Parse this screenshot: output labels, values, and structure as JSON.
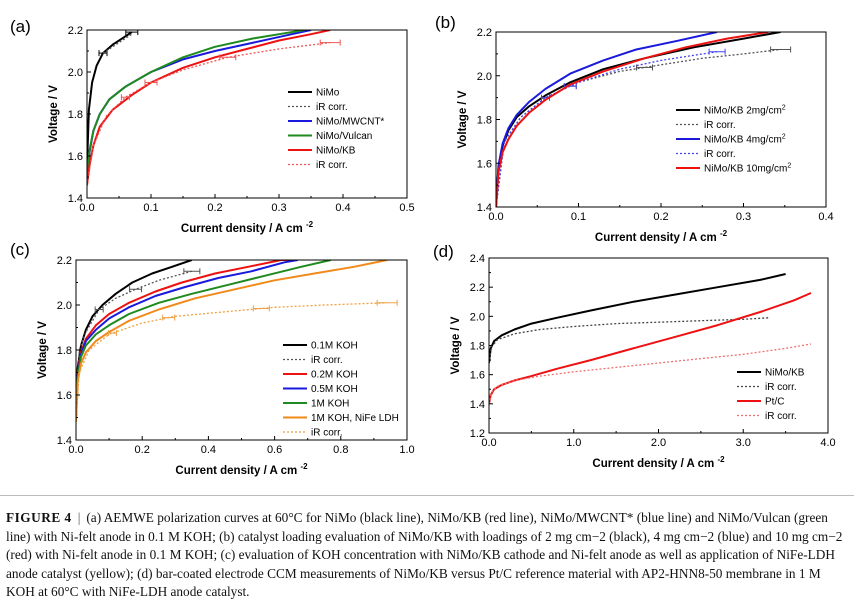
{
  "chart_data": [
    {
      "type": "line",
      "panel_label": "(a)",
      "xlabel": "Current density / A cm",
      "xlabel_sup": "-2",
      "ylabel": "Voltage / V",
      "xlim": [
        0,
        0.5
      ],
      "ylim": [
        1.4,
        2.2
      ],
      "xticks": [
        "0.0",
        "0.1",
        "0.2",
        "0.3",
        "0.4",
        "0.5"
      ],
      "yticks": [
        "1.4",
        "1.6",
        "1.8",
        "2.0",
        "2.2"
      ],
      "legend_position": "right-center",
      "series": [
        {
          "name": "NiMo",
          "color": "#000000",
          "dash": "solid",
          "x": [
            0,
            0.003,
            0.008,
            0.015,
            0.025,
            0.04,
            0.055,
            0.07
          ],
          "y": [
            1.55,
            1.82,
            1.95,
            2.03,
            2.09,
            2.13,
            2.16,
            2.19
          ],
          "errx": [
            0.025,
            0.07
          ]
        },
        {
          "name": "iR corr.",
          "color": "#555555",
          "dash": "dot",
          "x": [
            0.025,
            0.04,
            0.055,
            0.07
          ],
          "y": [
            2.09,
            2.12,
            2.15,
            2.18
          ]
        },
        {
          "name": "NiMo/MWCNT*",
          "color": "#1a1adc",
          "dash": "solid",
          "x": [
            0,
            0.004,
            0.01,
            0.02,
            0.035,
            0.06,
            0.1,
            0.15,
            0.2,
            0.26,
            0.32,
            0.35
          ],
          "y": [
            1.5,
            1.62,
            1.72,
            1.8,
            1.87,
            1.93,
            2.0,
            2.06,
            2.1,
            2.14,
            2.18,
            2.2
          ]
        },
        {
          "name": "NiMo/Vulcan",
          "color": "#1f8a1f",
          "dash": "solid",
          "x": [
            0,
            0.004,
            0.01,
            0.02,
            0.035,
            0.06,
            0.1,
            0.15,
            0.2,
            0.26,
            0.3,
            0.34
          ],
          "y": [
            1.5,
            1.63,
            1.72,
            1.8,
            1.87,
            1.93,
            2.0,
            2.07,
            2.12,
            2.16,
            2.18,
            2.2
          ]
        },
        {
          "name": "NiMo/KB",
          "color": "#ee1111",
          "dash": "solid",
          "x": [
            0,
            0.004,
            0.01,
            0.02,
            0.04,
            0.07,
            0.1,
            0.15,
            0.2,
            0.25,
            0.3,
            0.35,
            0.38
          ],
          "y": [
            1.46,
            1.56,
            1.65,
            1.74,
            1.82,
            1.89,
            1.95,
            2.02,
            2.07,
            2.11,
            2.15,
            2.18,
            2.2
          ]
        },
        {
          "name": "iR corr.",
          "color": "#ee5555",
          "dash": "dot",
          "x": [
            0,
            0.01,
            0.03,
            0.06,
            0.1,
            0.15,
            0.22,
            0.3,
            0.38
          ],
          "y": [
            1.46,
            1.65,
            1.79,
            1.88,
            1.95,
            2.01,
            2.07,
            2.11,
            2.14
          ],
          "errx": [
            0.06,
            0.1,
            0.22,
            0.38
          ]
        }
      ]
    },
    {
      "type": "line",
      "panel_label": "(b)",
      "xlabel": "Current density / A cm",
      "xlabel_sup": "-2",
      "ylabel": "Voltage / V",
      "xlim": [
        0,
        0.4
      ],
      "ylim": [
        1.4,
        2.2
      ],
      "xticks": [
        "0.0",
        "0.1",
        "0.2",
        "0.3",
        "0.4"
      ],
      "yticks": [
        "1.4",
        "1.6",
        "1.8",
        "2.0",
        "2.2"
      ],
      "legend_position": "right-center",
      "series": [
        {
          "name": "NiMo/KB 2mg/cm",
          "sup": "2",
          "color": "#000000",
          "dash": "solid",
          "x": [
            0,
            0.003,
            0.008,
            0.015,
            0.025,
            0.04,
            0.06,
            0.09,
            0.13,
            0.18,
            0.24,
            0.3,
            0.345
          ],
          "y": [
            1.4,
            1.58,
            1.68,
            1.75,
            1.81,
            1.86,
            1.91,
            1.97,
            2.03,
            2.08,
            2.13,
            2.17,
            2.2
          ]
        },
        {
          "name": "iR corr.",
          "color": "#555555",
          "dash": "dot",
          "x": [
            0,
            0.01,
            0.03,
            0.06,
            0.1,
            0.15,
            0.2,
            0.25,
            0.3,
            0.345
          ],
          "y": [
            1.4,
            1.7,
            1.81,
            1.9,
            1.97,
            2.02,
            2.05,
            2.08,
            2.1,
            2.12
          ],
          "errx": [
            0.06,
            0.09,
            0.18,
            0.345
          ]
        },
        {
          "name": "NiMo/KB 4mg/cm",
          "sup": "2",
          "color": "#1a1adc",
          "dash": "solid",
          "x": [
            0,
            0.003,
            0.008,
            0.015,
            0.025,
            0.04,
            0.06,
            0.09,
            0.13,
            0.17,
            0.22,
            0.268
          ],
          "y": [
            1.4,
            1.59,
            1.69,
            1.76,
            1.82,
            1.88,
            1.94,
            2.01,
            2.07,
            2.12,
            2.16,
            2.2
          ]
        },
        {
          "name": "iR corr.",
          "color": "#4444ee",
          "dash": "dot",
          "x": [
            0,
            0.01,
            0.03,
            0.06,
            0.1,
            0.15,
            0.2,
            0.268
          ],
          "y": [
            1.4,
            1.7,
            1.81,
            1.9,
            1.97,
            2.03,
            2.07,
            2.11
          ],
          "errx": [
            0.06,
            0.09,
            0.268
          ]
        },
        {
          "name": "NiMo/KB 10mg/cm",
          "sup": "2",
          "color": "#ee1111",
          "dash": "solid",
          "x": [
            0,
            0.003,
            0.008,
            0.015,
            0.025,
            0.04,
            0.06,
            0.09,
            0.13,
            0.18,
            0.23,
            0.28,
            0.33
          ],
          "y": [
            1.4,
            1.56,
            1.65,
            1.71,
            1.77,
            1.83,
            1.89,
            1.96,
            2.02,
            2.08,
            2.13,
            2.17,
            2.2
          ]
        }
      ]
    },
    {
      "type": "line",
      "panel_label": "(c)",
      "xlabel": "Current density / A cm",
      "xlabel_sup": "-2",
      "ylabel": "Voltage / V",
      "xlim": [
        0,
        1.0
      ],
      "ylim": [
        1.4,
        2.2
      ],
      "xticks": [
        "0.0",
        "0.2",
        "0.4",
        "0.6",
        "0.8",
        "1.0"
      ],
      "yticks": [
        "1.4",
        "1.6",
        "1.8",
        "2.0",
        "2.2"
      ],
      "legend_position": "right-center",
      "series": [
        {
          "name": "0.1M KOH",
          "color": "#000000",
          "dash": "solid",
          "x": [
            0,
            0.005,
            0.015,
            0.03,
            0.05,
            0.08,
            0.12,
            0.17,
            0.23,
            0.29,
            0.35
          ],
          "y": [
            1.5,
            1.72,
            1.82,
            1.89,
            1.95,
            2.0,
            2.05,
            2.1,
            2.14,
            2.17,
            2.2
          ]
        },
        {
          "name": "iR corr.",
          "color": "#555555",
          "dash": "dot",
          "x": [
            0,
            0.01,
            0.03,
            0.07,
            0.12,
            0.18,
            0.25,
            0.3,
            0.35
          ],
          "y": [
            1.5,
            1.8,
            1.88,
            1.98,
            2.03,
            2.07,
            2.11,
            2.13,
            2.15
          ],
          "errx": [
            0.07,
            0.18,
            0.35
          ]
        },
        {
          "name": "0.2M KOH",
          "color": "#ee1111",
          "dash": "solid",
          "x": [
            0,
            0.005,
            0.015,
            0.03,
            0.06,
            0.1,
            0.16,
            0.24,
            0.32,
            0.42,
            0.52,
            0.62,
            0.66
          ],
          "y": [
            1.5,
            1.7,
            1.79,
            1.85,
            1.91,
            1.96,
            2.01,
            2.06,
            2.1,
            2.14,
            2.17,
            2.2,
            2.2
          ]
        },
        {
          "name": "0.5M KOH",
          "color": "#1a1adc",
          "dash": "solid",
          "x": [
            0,
            0.005,
            0.015,
            0.03,
            0.06,
            0.1,
            0.16,
            0.24,
            0.33,
            0.43,
            0.53,
            0.63,
            0.67
          ],
          "y": [
            1.5,
            1.69,
            1.78,
            1.84,
            1.89,
            1.94,
            1.99,
            2.04,
            2.08,
            2.12,
            2.15,
            2.19,
            2.2
          ]
        },
        {
          "name": "1M KOH",
          "color": "#1f8a1f",
          "dash": "solid",
          "x": [
            0,
            0.005,
            0.015,
            0.03,
            0.06,
            0.1,
            0.16,
            0.25,
            0.35,
            0.46,
            0.57,
            0.68,
            0.77
          ],
          "y": [
            1.5,
            1.68,
            1.77,
            1.82,
            1.87,
            1.91,
            1.96,
            2.01,
            2.05,
            2.09,
            2.13,
            2.17,
            2.2
          ]
        },
        {
          "name": "1M KOH, NiFe LDH",
          "color": "#f08a1a",
          "dash": "solid",
          "x": [
            0,
            0.005,
            0.015,
            0.03,
            0.06,
            0.1,
            0.16,
            0.25,
            0.36,
            0.48,
            0.6,
            0.72,
            0.84,
            0.94
          ],
          "y": [
            1.48,
            1.66,
            1.74,
            1.79,
            1.84,
            1.88,
            1.93,
            1.98,
            2.03,
            2.07,
            2.11,
            2.14,
            2.17,
            2.2
          ]
        },
        {
          "name": "iR corr.",
          "color": "#f0a040",
          "dash": "dot",
          "x": [
            0,
            0.01,
            0.04,
            0.1,
            0.2,
            0.3,
            0.45,
            0.6,
            0.75,
            0.94
          ],
          "y": [
            1.48,
            1.7,
            1.8,
            1.87,
            1.92,
            1.95,
            1.97,
            1.99,
            2.0,
            2.01
          ],
          "errx": [
            0.11,
            0.28,
            0.56,
            0.94
          ]
        }
      ]
    },
    {
      "type": "line",
      "panel_label": "(d)",
      "xlabel": "Current density / A cm",
      "xlabel_sup": "-2",
      "ylabel": "Voltage / V",
      "xlim": [
        0,
        4.0
      ],
      "ylim": [
        1.2,
        2.4
      ],
      "xticks": [
        "0.0",
        "1.0",
        "2.0",
        "3.0",
        "4.0"
      ],
      "yticks": [
        "1.2",
        "1.4",
        "1.6",
        "1.8",
        "2.0",
        "2.2",
        "2.4"
      ],
      "legend_position": "right-center",
      "series": [
        {
          "name": "NiMo/KB",
          "color": "#000000",
          "dash": "solid",
          "x": [
            0,
            0.02,
            0.06,
            0.15,
            0.3,
            0.5,
            0.8,
            1.2,
            1.7,
            2.2,
            2.7,
            3.2,
            3.5
          ],
          "y": [
            1.68,
            1.78,
            1.83,
            1.87,
            1.91,
            1.95,
            1.99,
            2.04,
            2.1,
            2.15,
            2.2,
            2.25,
            2.29
          ]
        },
        {
          "name": "iR corr.",
          "color": "#444444",
          "dash": "dot",
          "x": [
            0,
            0.03,
            0.1,
            0.3,
            0.6,
            1.0,
            1.5,
            2.0,
            2.5,
            3.0,
            3.3
          ],
          "y": [
            1.68,
            1.79,
            1.84,
            1.88,
            1.91,
            1.93,
            1.95,
            1.96,
            1.97,
            1.98,
            1.99
          ]
        },
        {
          "name": "Pt/C",
          "color": "#ee1111",
          "dash": "solid",
          "x": [
            0,
            0.02,
            0.06,
            0.15,
            0.3,
            0.5,
            0.8,
            1.2,
            1.7,
            2.2,
            2.7,
            3.2,
            3.6,
            3.8
          ],
          "y": [
            1.4,
            1.46,
            1.5,
            1.53,
            1.56,
            1.59,
            1.64,
            1.7,
            1.78,
            1.86,
            1.94,
            2.03,
            2.11,
            2.16
          ]
        },
        {
          "name": "iR corr.",
          "color": "#f07070",
          "dash": "dot",
          "x": [
            0,
            0.03,
            0.1,
            0.3,
            0.6,
            1.0,
            1.5,
            2.0,
            2.5,
            3.0,
            3.5,
            3.8
          ],
          "y": [
            1.4,
            1.48,
            1.52,
            1.56,
            1.59,
            1.62,
            1.65,
            1.68,
            1.71,
            1.74,
            1.78,
            1.81
          ]
        }
      ]
    }
  ],
  "caption": {
    "label": "FIGURE 4",
    "text": "(a) AEMWE polarization curves at 60°C for NiMo (black line), NiMo/KB (red line), NiMo/MWCNT* (blue line) and NiMo/Vulcan (green line) with Ni-felt anode in 0.1 M KOH; (b) catalyst loading evaluation of NiMo/KB with loadings of 2 mg cm−2 (black), 4 mg cm−2 (blue) and 10 mg cm−2 (red) with Ni-felt anode in 0.1 M KOH; (c) evaluation of KOH concentration with NiMo/KB cathode and Ni-felt anode as well as application of NiFe-LDH anode catalyst (yellow); (d) bar-coated electrode CCM measurements of NiMo/KB versus Pt/C reference material with AP2-HNN8-50 membrane in 1 M KOH at 60°C with NiFe-LDH anode catalyst."
  }
}
